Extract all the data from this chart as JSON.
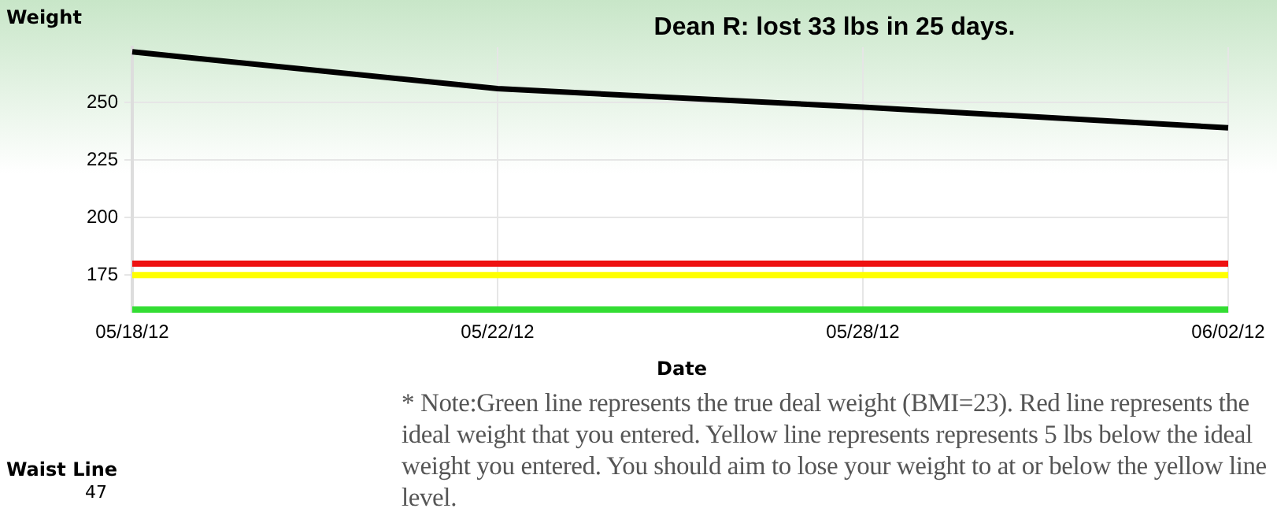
{
  "chart_data": {
    "type": "line",
    "title": "Dean R: lost 33 lbs in 25 days.",
    "ylabel": "Weight",
    "xlabel": "Date",
    "categories": [
      "05/18/12",
      "05/22/12",
      "05/28/12",
      "06/02/12"
    ],
    "series": [
      {
        "color": "#000000",
        "values": [
          272,
          256,
          248,
          239
        ]
      }
    ],
    "ylim": [
      159,
      274
    ],
    "yticks": [
      175,
      200,
      225,
      250
    ],
    "grid": true,
    "legend": false,
    "marker": "none",
    "line_style": "solid",
    "ref_lines": [
      {
        "axis": "y",
        "value": 180,
        "color": "#ee1111"
      },
      {
        "axis": "y",
        "value": 175,
        "color": "#ffff00"
      },
      {
        "axis": "y",
        "value": 160,
        "color": "#33dd33"
      }
    ],
    "annotations": [
      "* Note:Green line represents the true deal weight (BMI=23). Red line represents the ideal weight that you entered. Yellow line represents represents 5 lbs below the ideal weight you entered. You should aim to lose your weight to at or below the yellow line level.",
      "Waist Line",
      "47"
    ]
  }
}
